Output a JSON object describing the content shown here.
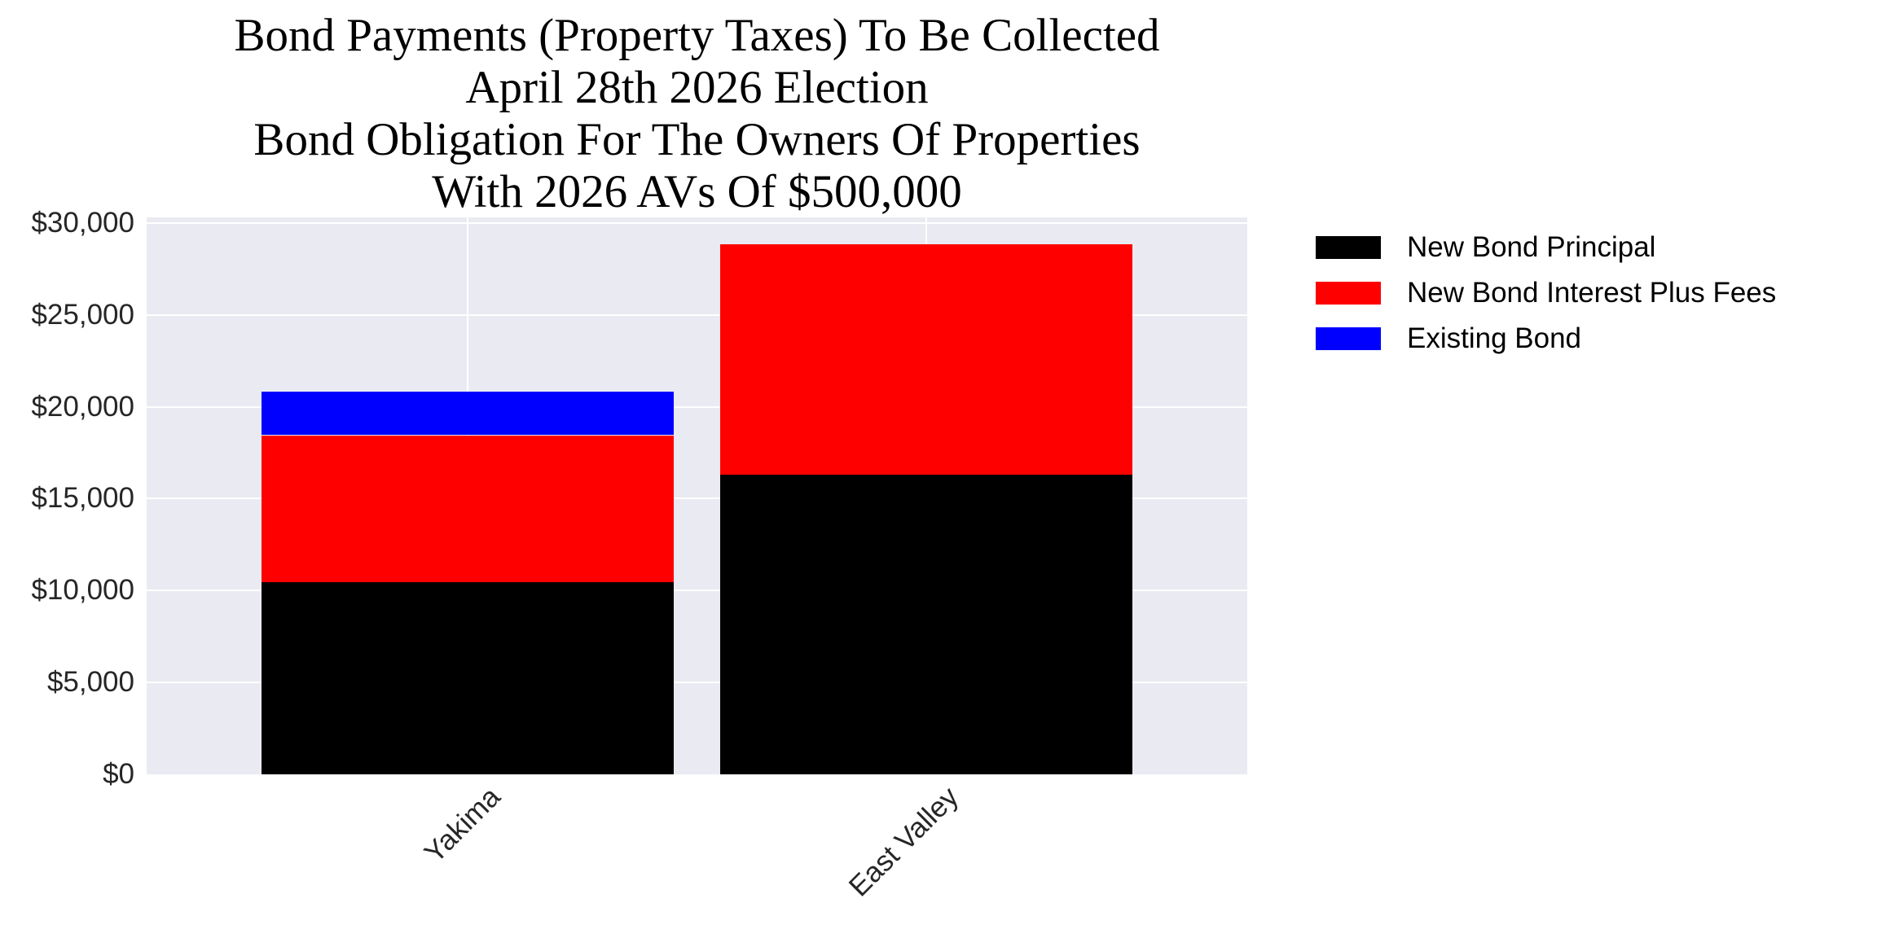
{
  "chart_data": {
    "type": "bar",
    "stacked": true,
    "title": "Bond Payments (Property Taxes) To Be Collected\nApril 28th 2026 Election\nBond Obligation For The Owners Of Properties\nWith 2026 AVs Of $500,000",
    "title_lines": [
      "Bond Payments (Property Taxes) To Be Collected",
      "April 28th 2026 Election",
      "Bond Obligation For The Owners Of Properties",
      "With 2026 AVs Of $500,000"
    ],
    "xlabel": "",
    "ylabel": "",
    "categories": [
      "Yakima",
      "East Valley"
    ],
    "series": [
      {
        "name": "New Bond Principal",
        "color": "#000000",
        "values": [
          10440,
          16280
        ]
      },
      {
        "name": "New Bond Interest Plus Fees",
        "color": "#FF0000",
        "values": [
          8010,
          12570
        ]
      },
      {
        "name": "Existing Bond",
        "color": "#0000FF",
        "values": [
          2390,
          0
        ]
      }
    ],
    "totals": [
      20840,
      28850
    ],
    "ylim": [
      0,
      30300
    ],
    "yticks": [
      0,
      5000,
      10000,
      15000,
      20000,
      25000,
      30000
    ],
    "ytick_labels": [
      "$0",
      "$5,000",
      "$10,000",
      "$15,000",
      "$20,000",
      "$25,000",
      "$30,000"
    ],
    "xtick_rotation": 45,
    "grid": true,
    "background": "#EAEAF2",
    "legend_position": "outside-right-top"
  },
  "legend": {
    "items": [
      {
        "label": "New Bond Principal",
        "color": "#000000"
      },
      {
        "label": "New Bond Interest Plus Fees",
        "color": "#FF0000"
      },
      {
        "label": "Existing Bond",
        "color": "#0000FF"
      }
    ]
  }
}
